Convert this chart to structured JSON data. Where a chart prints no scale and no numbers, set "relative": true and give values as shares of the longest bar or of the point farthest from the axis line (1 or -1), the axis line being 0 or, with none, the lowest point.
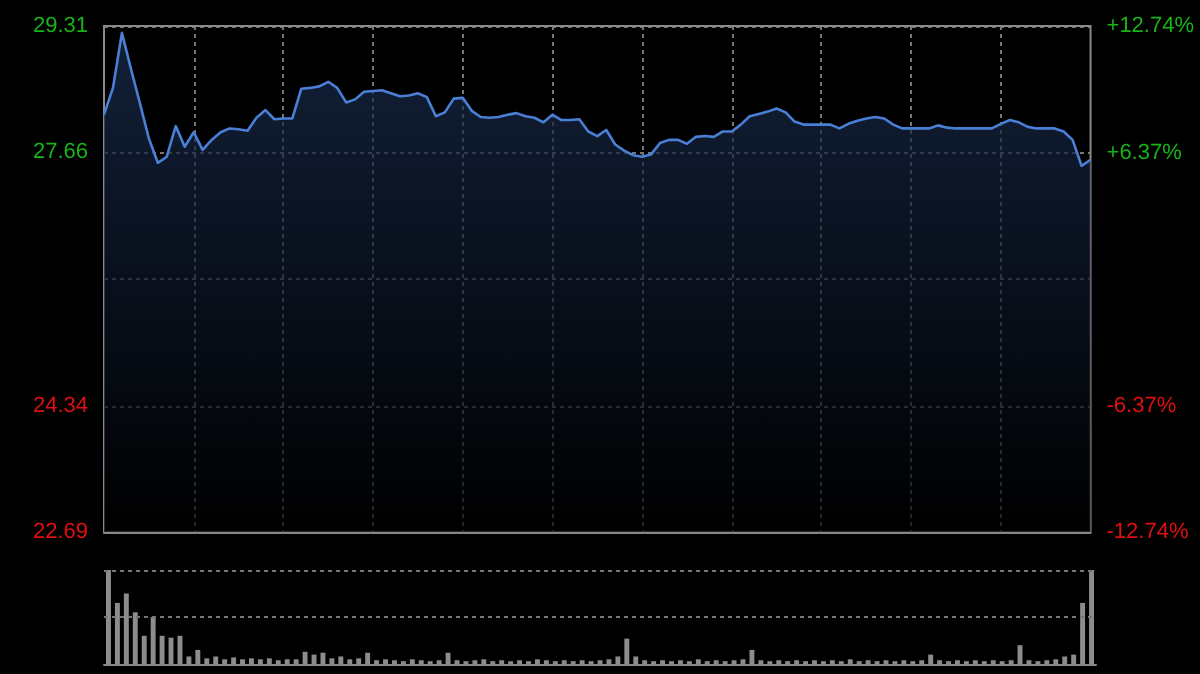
{
  "chart_data": [
    {
      "type": "area",
      "categories": [
        null,
        null,
        null,
        null,
        null,
        null,
        null,
        null,
        null,
        null,
        null,
        null,
        null,
        null,
        null,
        null,
        null,
        null,
        null,
        null,
        null,
        null,
        null,
        null,
        null,
        null,
        null,
        null,
        null,
        null,
        null,
        null,
        null,
        null,
        null,
        null,
        null,
        null,
        null,
        null,
        null,
        null,
        null,
        null,
        null,
        null,
        null,
        null,
        null,
        null,
        null,
        null,
        null,
        null,
        null,
        null,
        null,
        null,
        null,
        null,
        null,
        null,
        null,
        null,
        null,
        null,
        null,
        null,
        null,
        null,
        null,
        null,
        null,
        null,
        null,
        null,
        null,
        null,
        null,
        null,
        null,
        null,
        null,
        null,
        null,
        null,
        null,
        null,
        null,
        null,
        null,
        null,
        null,
        null,
        null,
        null,
        null,
        null,
        null,
        null,
        null,
        null,
        null,
        null,
        null,
        null,
        null,
        null,
        null,
        null,
        null
      ],
      "series": [
        {
          "color": "#4a7fd6",
          "values": [
            28.15,
            28.5,
            29.22,
            28.75,
            28.3,
            27.84,
            27.52,
            27.6,
            28.0,
            27.73,
            27.92,
            27.69,
            27.82,
            27.92,
            27.97,
            27.96,
            27.94,
            28.11,
            28.21,
            28.09,
            28.1,
            28.1,
            28.49,
            28.5,
            28.52,
            28.58,
            28.5,
            28.31,
            28.35,
            28.45,
            28.46,
            28.47,
            28.43,
            28.39,
            28.4,
            28.43,
            28.38,
            28.13,
            28.18,
            28.36,
            28.37,
            28.2,
            28.12,
            28.11,
            28.12,
            28.15,
            28.17,
            28.13,
            28.11,
            28.05,
            28.15,
            28.08,
            28.08,
            28.09,
            27.93,
            27.87,
            27.95,
            27.76,
            27.68,
            27.62,
            27.6,
            27.63,
            27.78,
            27.82,
            27.82,
            27.77,
            27.86,
            27.87,
            27.86,
            27.93,
            27.93,
            28.02,
            28.13,
            28.16,
            28.19,
            28.23,
            28.18,
            28.06,
            28.02,
            28.02,
            28.02,
            28.02,
            27.97,
            28.03,
            28.07,
            28.1,
            28.12,
            28.1,
            28.02,
            27.97,
            27.97,
            27.97,
            27.97,
            28.01,
            27.98,
            27.97,
            27.97,
            27.97,
            27.97,
            27.97,
            28.03,
            28.08,
            28.05,
            27.99,
            27.97,
            27.97,
            27.97,
            27.93,
            27.82,
            27.48,
            27.56
          ]
        }
      ],
      "ylim": [
        22.69,
        29.31
      ],
      "yticks": [
        22.69,
        24.34,
        {
          "value": 26.0,
          "label": null
        },
        27.66,
        29.31
      ],
      "y2lim": [
        -12.74,
        12.74
      ],
      "y2ticks": [
        {
          "value": -12.74,
          "label": "-12.74%"
        },
        {
          "value": -6.37,
          "label": "-6.37%"
        },
        {
          "value": 0,
          "label": null
        },
        {
          "value": 6.37,
          "label": "+6.37%"
        },
        {
          "value": 12.74,
          "label": "+12.74%"
        }
      ],
      "grid": true,
      "tick_labels": "y"
    },
    {
      "type": "bar",
      "relative": true,
      "ref_lines": [
        {
          "axis": "y",
          "value": 0.5
        },
        {
          "axis": "y",
          "value": 1
        }
      ],
      "tick_labels": false,
      "categories": [
        null,
        null,
        null,
        null,
        null,
        null,
        null,
        null,
        null,
        null,
        null,
        null,
        null,
        null,
        null,
        null,
        null,
        null,
        null,
        null,
        null,
        null,
        null,
        null,
        null,
        null,
        null,
        null,
        null,
        null,
        null,
        null,
        null,
        null,
        null,
        null,
        null,
        null,
        null,
        null,
        null,
        null,
        null,
        null,
        null,
        null,
        null,
        null,
        null,
        null,
        null,
        null,
        null,
        null,
        null,
        null,
        null,
        null,
        null,
        null,
        null,
        null,
        null,
        null,
        null,
        null,
        null,
        null,
        null,
        null,
        null,
        null,
        null,
        null,
        null,
        null,
        null,
        null,
        null,
        null,
        null,
        null,
        null,
        null,
        null,
        null,
        null,
        null,
        null,
        null,
        null,
        null,
        null,
        null,
        null,
        null,
        null,
        null,
        null,
        null,
        null,
        null,
        null,
        null,
        null,
        null,
        null,
        null,
        null,
        null,
        null
      ],
      "series": [
        {
          "color": "#8c8c8c",
          "values": [
            1.0,
            0.65,
            0.75,
            0.55,
            0.3,
            0.5,
            0.3,
            0.28,
            0.3,
            0.08,
            0.15,
            0.06,
            0.08,
            0.05,
            0.07,
            0.05,
            0.06,
            0.05,
            0.06,
            0.04,
            0.05,
            0.05,
            0.13,
            0.1,
            0.12,
            0.06,
            0.08,
            0.05,
            0.06,
            0.12,
            0.04,
            0.05,
            0.04,
            0.03,
            0.05,
            0.04,
            0.03,
            0.04,
            0.12,
            0.04,
            0.03,
            0.04,
            0.05,
            0.03,
            0.04,
            0.03,
            0.04,
            0.03,
            0.05,
            0.04,
            0.03,
            0.04,
            0.03,
            0.04,
            0.03,
            0.04,
            0.05,
            0.08,
            0.27,
            0.08,
            0.04,
            0.03,
            0.04,
            0.03,
            0.04,
            0.03,
            0.05,
            0.03,
            0.04,
            0.03,
            0.04,
            0.05,
            0.15,
            0.04,
            0.03,
            0.04,
            0.03,
            0.04,
            0.03,
            0.04,
            0.03,
            0.04,
            0.03,
            0.05,
            0.03,
            0.04,
            0.03,
            0.04,
            0.03,
            0.04,
            0.03,
            0.04,
            0.1,
            0.04,
            0.03,
            0.04,
            0.03,
            0.04,
            0.03,
            0.04,
            0.03,
            0.04,
            0.2,
            0.04,
            0.03,
            0.04,
            0.05,
            0.08,
            0.1,
            0.65,
            1.0
          ]
        }
      ]
    }
  ]
}
